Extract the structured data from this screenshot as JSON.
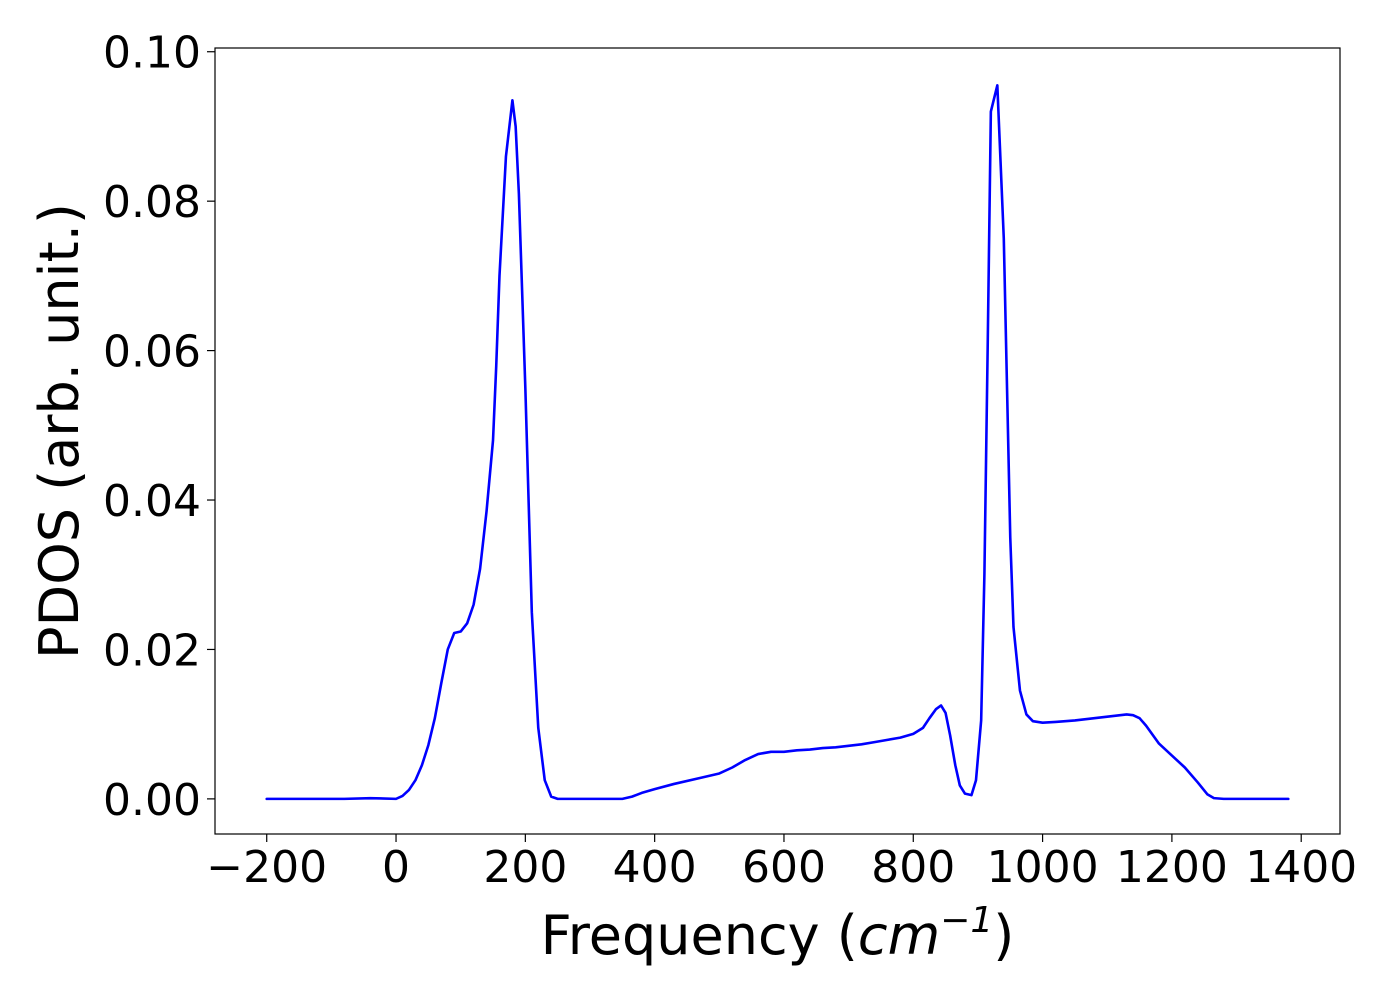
{
  "chart_data": {
    "type": "line",
    "title": "",
    "xlabel": "Frequency ",
    "xlabel_math": "cm",
    "xlabel_sup": "−1",
    "ylabel": "PDOS (arb. unit.)",
    "xlim": [
      -280,
      1460
    ],
    "ylim": [
      -0.0047,
      0.1005
    ],
    "x_ticks": [
      -200,
      0,
      200,
      400,
      600,
      800,
      1000,
      1200,
      1400
    ],
    "x_tick_labels": [
      "−200",
      "0",
      "200",
      "400",
      "600",
      "800",
      "1000",
      "1200",
      "1400"
    ],
    "y_ticks": [
      0.0,
      0.02,
      0.04,
      0.06,
      0.08,
      0.1
    ],
    "y_tick_labels": [
      "0.00",
      "0.02",
      "0.04",
      "0.06",
      "0.08",
      "0.10"
    ],
    "grid": false,
    "colors": {
      "line": "#0000ff",
      "axes": "#000000"
    },
    "series": [
      {
        "x": [
          -200,
          -100,
          -80,
          -40,
          0,
          10,
          20,
          30,
          40,
          50,
          60,
          70,
          80,
          90,
          100,
          110,
          120,
          130,
          140,
          150,
          155,
          160,
          170,
          180,
          185,
          190,
          200,
          210,
          220,
          230,
          240,
          250,
          300,
          350,
          365,
          380,
          400,
          430,
          470,
          500,
          520,
          540,
          560,
          580,
          600,
          620,
          640,
          660,
          680,
          700,
          720,
          740,
          760,
          780,
          800,
          815,
          825,
          835,
          843,
          850,
          857,
          865,
          872,
          880,
          890,
          897,
          905,
          910,
          915,
          920,
          930,
          940,
          945,
          950,
          955,
          965,
          975,
          985,
          1000,
          1020,
          1050,
          1080,
          1100,
          1120,
          1130,
          1140,
          1150,
          1160,
          1170,
          1180,
          1200,
          1220,
          1240,
          1255,
          1265,
          1280,
          1300,
          1350,
          1380
        ],
        "y": [
          0.0,
          0.0,
          0.0,
          0.0001,
          0.0,
          0.0004,
          0.0012,
          0.0025,
          0.0045,
          0.0072,
          0.0108,
          0.0155,
          0.02,
          0.0222,
          0.0224,
          0.0235,
          0.026,
          0.0308,
          0.0385,
          0.048,
          0.058,
          0.07,
          0.086,
          0.0935,
          0.09,
          0.081,
          0.055,
          0.025,
          0.0095,
          0.0025,
          0.0003,
          0.0,
          0.0,
          0.0,
          0.0003,
          0.0008,
          0.0013,
          0.002,
          0.0028,
          0.0034,
          0.0042,
          0.0052,
          0.006,
          0.0063,
          0.0063,
          0.0065,
          0.0066,
          0.0068,
          0.0069,
          0.0071,
          0.0073,
          0.0076,
          0.0079,
          0.0082,
          0.0087,
          0.0095,
          0.0108,
          0.012,
          0.0125,
          0.0115,
          0.0085,
          0.0045,
          0.0018,
          0.0007,
          0.0005,
          0.0025,
          0.0105,
          0.03,
          0.06,
          0.092,
          0.0955,
          0.075,
          0.055,
          0.035,
          0.023,
          0.0145,
          0.0113,
          0.0104,
          0.0102,
          0.0103,
          0.0105,
          0.0108,
          0.011,
          0.0112,
          0.0113,
          0.0112,
          0.0108,
          0.0098,
          0.0086,
          0.0074,
          0.0058,
          0.0042,
          0.0022,
          0.0006,
          0.0001,
          0.0,
          0.0,
          0.0,
          0.0
        ]
      }
    ]
  }
}
